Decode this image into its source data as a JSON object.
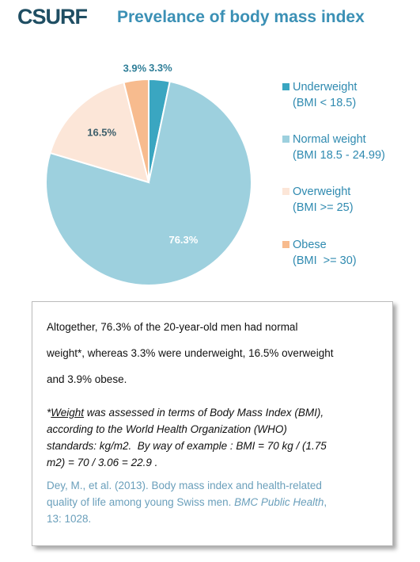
{
  "header": {
    "logo": "CSURF",
    "title": "Prevelance of body mass index"
  },
  "chart_data": {
    "type": "pie",
    "categories": [
      "Underweight",
      "Normal weight",
      "Overweight",
      "Obese"
    ],
    "ranges": [
      "(BMI < 18.5)",
      "(BMI 18.5 - 24.99)",
      "(BMI >= 25)",
      "(BMI  >= 30)"
    ],
    "values": [
      3.3,
      76.3,
      16.5,
      3.9
    ],
    "value_labels": [
      "3.3%",
      "76.3%",
      "16.5%",
      "3.9%"
    ],
    "colors": [
      "#3aa6c1",
      "#9dd0de",
      "#fce6d8",
      "#f7bb8e"
    ],
    "legend": "right"
  },
  "box": {
    "summary_lines": [
      "Altogether, 76.3% of the 20-year-old men had normal",
      "weight*, whereas 3.3% were underweight, 16.5% overweight",
      "and 3.9% obese."
    ],
    "note": {
      "marker": "*",
      "term": "Weight",
      "first_rest": " was assessed in terms of Body Mass Index (BMI),",
      "lines": [
        "according to the World Health Organization (WHO)",
        "standards: kg/m2.  By way of example : BMI = 70 kg / (1.75",
        "m2) = 70 / 3.06 = 22.9 ."
      ]
    },
    "citation": {
      "line1": "Dey, M., et al. (2013). Body mass index and health-related",
      "line2_start": "quality of life among young Swiss men. ",
      "journal": "BMC Public Health",
      "line2_end": ",",
      "line3": "13: 1028."
    }
  }
}
